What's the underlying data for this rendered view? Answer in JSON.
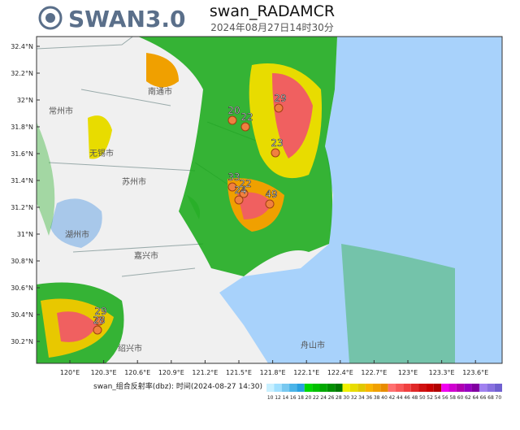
{
  "logo": "SWAN3.0",
  "title": "swan_RADAMCR",
  "subtitle": "2024年08月27日14时30分",
  "map": {
    "lat_labels": [
      "32.4°N",
      "32.2°N",
      "32°N",
      "31.8°N",
      "31.6°N",
      "31.4°N",
      "31.2°N",
      "31°N",
      "30.8°N",
      "30.6°N",
      "30.4°N",
      "30.2°N"
    ],
    "lon_labels": [
      "120°E",
      "120.3°E",
      "120.6°E",
      "120.9°E",
      "121.2°E",
      "121.5°E",
      "121.8°E",
      "122.1°E",
      "122.4°E",
      "122.7°E",
      "123°E",
      "123.3°E",
      "123.6°E"
    ],
    "places": [
      "常州市",
      "南通市",
      "无锡市",
      "苏州市",
      "湖州市",
      "嘉兴市",
      "绍兴市",
      "舟山市"
    ],
    "cell_labels": [
      29,
      20,
      22,
      23,
      33,
      22,
      24,
      49,
      29,
      28
    ]
  },
  "legend": {
    "caption": "swan_组合反射率(dbz): 时间(2024-08-27 14:30)",
    "levels": [
      10,
      12,
      14,
      16,
      18,
      20,
      22,
      24,
      26,
      28,
      30,
      32,
      34,
      36,
      38,
      40,
      42,
      44,
      46,
      48,
      50,
      52,
      54,
      56,
      58,
      60,
      62,
      64,
      66,
      68,
      70
    ],
    "colors": [
      "#c8f0ff",
      "#a0e0ff",
      "#78c8f0",
      "#4ab4e8",
      "#28a0e0",
      "#00d800",
      "#00c000",
      "#00a800",
      "#009000",
      "#007800",
      "#f0f000",
      "#e8dc00",
      "#e0c800",
      "#f8b400",
      "#f0a000",
      "#e88c00",
      "#ff7070",
      "#f85858",
      "#f04040",
      "#e02828",
      "#d01010",
      "#c80000",
      "#b00000",
      "#f000f0",
      "#d000d0",
      "#b000b0",
      "#9800c0",
      "#8000a0",
      "#a080f0",
      "#8870e0",
      "#7060d0"
    ]
  }
}
